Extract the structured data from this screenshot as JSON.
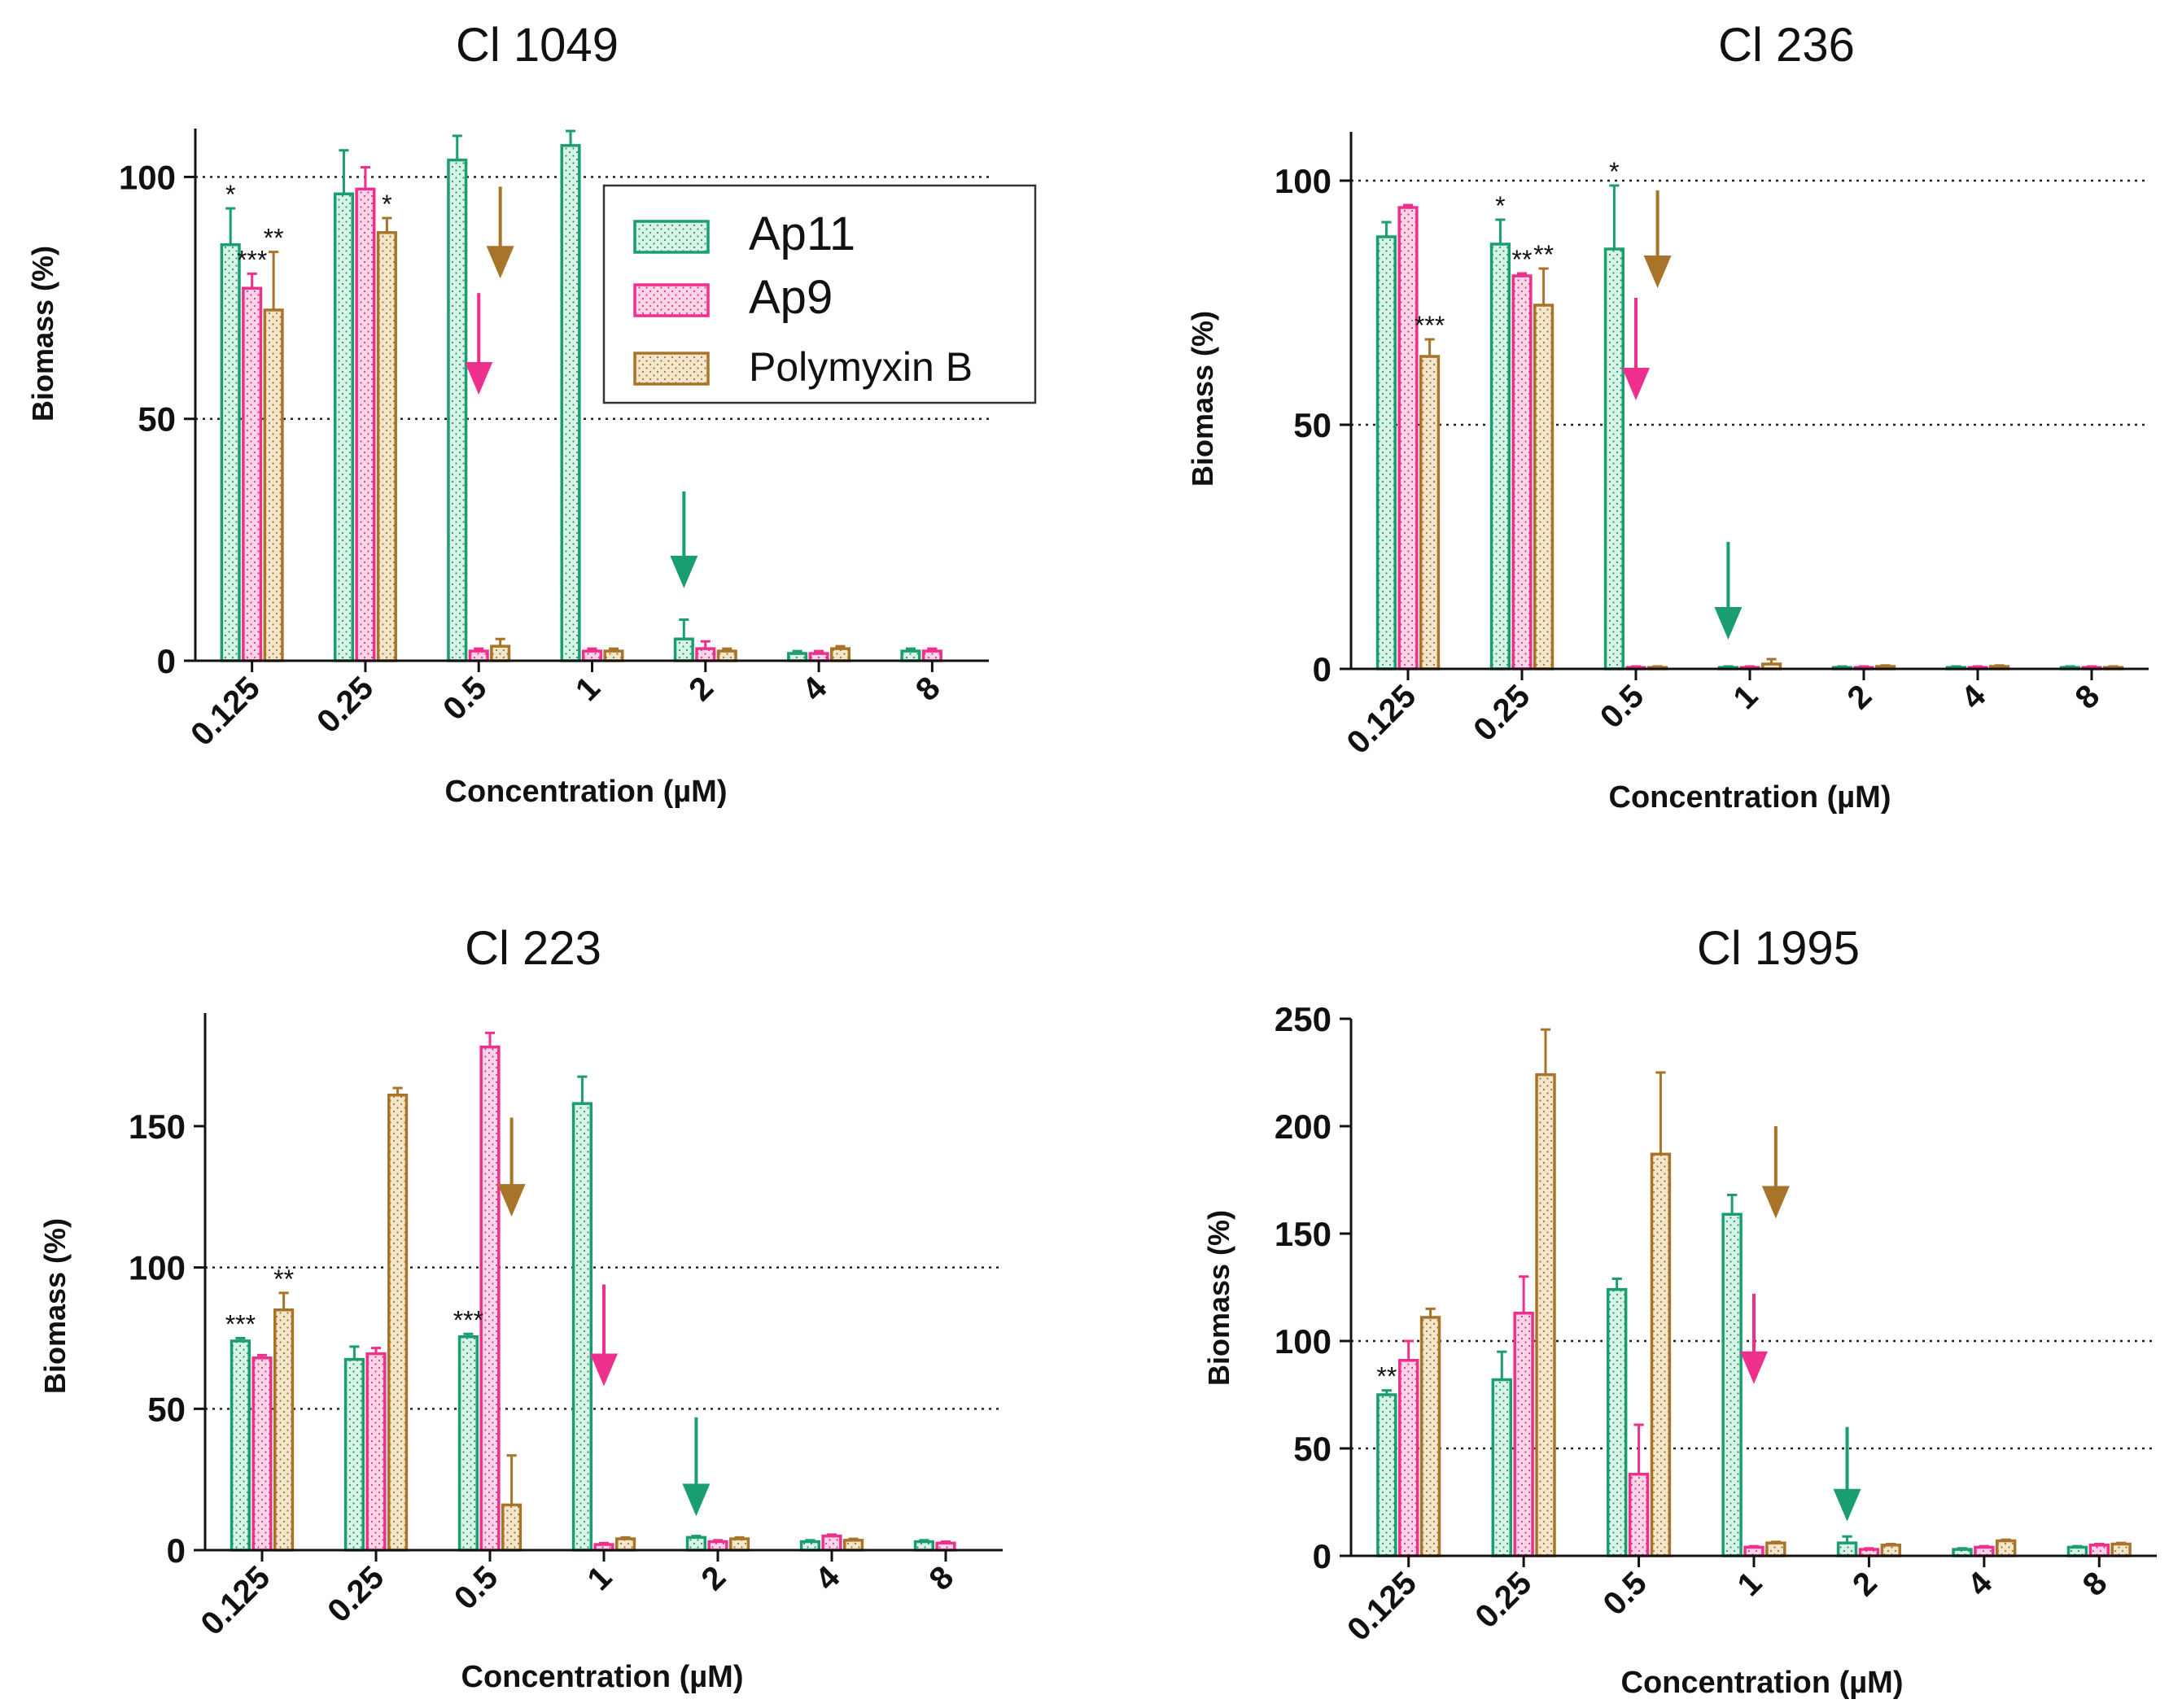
{
  "figure": {
    "colors": {
      "ap11": "#1a9e70",
      "ap9": "#ee2f8c",
      "polymyxin": "#a8742a",
      "ap11_fill": "#daf3e7",
      "ap9_fill": "#fbd6e7",
      "polymyxin_fill": "#f2e6cd",
      "axis": "#111111",
      "reference_line": "#222222"
    },
    "legend": {
      "entries": [
        "Ap11",
        "Ap9",
        "Polymyxin B"
      ]
    }
  },
  "chart_data": [
    {
      "type": "bar",
      "title": "Cl 1049",
      "xlabel": "Concentration (µM)",
      "ylabel": "Biomass (%)",
      "categories": [
        "0.125",
        "0.25",
        "0.5",
        "1",
        "2",
        "4",
        "8"
      ],
      "ylim": [
        0,
        110
      ],
      "yticks": [
        "0",
        "50",
        "100"
      ],
      "reference_lines": [
        50,
        100
      ],
      "legend_position": "top-right",
      "series": [
        {
          "name": "Ap11",
          "values": [
            86,
            96.5,
            103.5,
            106.5,
            4.5,
            1.5,
            2
          ],
          "errors": [
            7.5,
            9,
            5,
            3,
            4,
            0.5,
            0.5
          ]
        },
        {
          "name": "Ap9",
          "values": [
            77,
            97.5,
            2,
            2,
            2.5,
            1.5,
            2
          ],
          "errors": [
            3,
            4.5,
            0.5,
            0.5,
            1.5,
            0.5,
            0.5
          ]
        },
        {
          "name": "Polymyxin B",
          "values": [
            72.5,
            88.5,
            3,
            2,
            2,
            2.5,
            null
          ],
          "errors": [
            12,
            3,
            1.5,
            0.5,
            0.5,
            0.5,
            null
          ]
        }
      ],
      "significance": [
        {
          "category": "0.125",
          "series": "Ap11",
          "label": "*"
        },
        {
          "category": "0.125",
          "series": "Ap9",
          "label": "***"
        },
        {
          "category": "0.125",
          "series": "Polymyxin B",
          "label": "**"
        },
        {
          "category": "0.25",
          "series": "Polymyxin B",
          "label": "*"
        }
      ],
      "arrows": [
        {
          "series": "Polymyxin B",
          "category": "0.5",
          "top": 98,
          "bottom": 79
        },
        {
          "series": "Ap9",
          "category": "0.5",
          "top": 76,
          "bottom": 55
        },
        {
          "series": "Ap11",
          "category": "2",
          "top": 35,
          "bottom": 15
        }
      ]
    },
    {
      "type": "bar",
      "title": "Cl 236",
      "xlabel": "Concentration (µM)",
      "ylabel": "Biomass (%)",
      "categories": [
        "0.125",
        "0.25",
        "0.5",
        "1",
        "2",
        "4",
        "8"
      ],
      "ylim": [
        0,
        110
      ],
      "yticks": [
        "0",
        "50",
        "100"
      ],
      "reference_lines": [
        50,
        100
      ],
      "series": [
        {
          "name": "Ap11",
          "values": [
            88.5,
            87,
            86,
            0.3,
            0.3,
            0.3,
            0.3
          ],
          "errors": [
            3,
            5,
            13,
            0.2,
            0.2,
            0.2,
            0.2
          ]
        },
        {
          "name": "Ap9",
          "values": [
            94.5,
            80.5,
            0.3,
            0.3,
            0.3,
            0.3,
            0.3
          ],
          "errors": [
            0.5,
            0.5,
            0.2,
            0.2,
            0.2,
            0.2,
            0.2
          ]
        },
        {
          "name": "Polymyxin B",
          "values": [
            64,
            74.5,
            0.3,
            1,
            0.5,
            0.5,
            0.3
          ],
          "errors": [
            3.5,
            7.5,
            0.2,
            1,
            0.2,
            0.2,
            0.2
          ]
        }
      ],
      "significance": [
        {
          "category": "0.125",
          "series": "Polymyxin B",
          "label": "***"
        },
        {
          "category": "0.25",
          "series": "Ap11",
          "label": "*"
        },
        {
          "category": "0.25",
          "series": "Ap9",
          "label": "**"
        },
        {
          "category": "0.25",
          "series": "Polymyxin B",
          "label": "**"
        },
        {
          "category": "0.5",
          "series": "Ap11",
          "label": "*"
        }
      ],
      "arrows": [
        {
          "series": "Polymyxin B",
          "category": "0.5",
          "top": 98,
          "bottom": 78
        },
        {
          "series": "Ap9",
          "category": "0.5",
          "top": 76,
          "bottom": 55
        },
        {
          "series": "Ap11",
          "category": "1",
          "top": 26,
          "bottom": 6
        }
      ]
    },
    {
      "type": "bar",
      "title": "Cl 223",
      "xlabel": "Concentration (µM)",
      "ylabel": "Biomass (%)",
      "categories": [
        "0.125",
        "0.25",
        "0.5",
        "1",
        "2",
        "4",
        "8"
      ],
      "ylim": [
        0,
        190
      ],
      "yticks": [
        "0",
        "50",
        "100",
        "150"
      ],
      "reference_lines": [
        50,
        100
      ],
      "series": [
        {
          "name": "Ap11",
          "values": [
            74,
            67.5,
            75.5,
            158,
            4.5,
            3,
            3
          ],
          "errors": [
            1,
            4.5,
            1,
            9.5,
            0.5,
            0.5,
            0.5
          ]
        },
        {
          "name": "Ap9",
          "values": [
            68,
            69.5,
            178,
            2,
            3,
            5,
            2.5
          ],
          "errors": [
            1,
            2,
            5,
            0.5,
            0.5,
            0.5,
            0.5
          ]
        },
        {
          "name": "Polymyxin B",
          "values": [
            85,
            161,
            16,
            4,
            4,
            3.5,
            null
          ],
          "errors": [
            6,
            2.5,
            17.5,
            0.5,
            0.5,
            0.5,
            null
          ]
        }
      ],
      "significance": [
        {
          "category": "0.125",
          "series": "Ap11",
          "label": "***"
        },
        {
          "category": "0.125",
          "series": "Polymyxin B",
          "label": "**"
        },
        {
          "category": "0.5",
          "series": "Ap11",
          "label": "***"
        }
      ],
      "arrows": [
        {
          "series": "Polymyxin B",
          "category": "0.5",
          "top": 153,
          "bottom": 118
        },
        {
          "series": "Ap9",
          "category": "1",
          "top": 94,
          "bottom": 58
        },
        {
          "series": "Ap11",
          "category": "2",
          "top": 47,
          "bottom": 12
        }
      ]
    },
    {
      "type": "bar",
      "title": "Cl 1995",
      "xlabel": "Concentration (µM)",
      "ylabel": "Biomass (%)",
      "categories": [
        "0.125",
        "0.25",
        "0.5",
        "1",
        "2",
        "4",
        "8"
      ],
      "ylim": [
        0,
        250
      ],
      "yticks": [
        "0",
        "50",
        "100",
        "150",
        "200",
        "250"
      ],
      "reference_lines": [
        50,
        100
      ],
      "series": [
        {
          "name": "Ap11",
          "values": [
            75,
            82,
            124,
            159,
            6,
            3,
            4
          ],
          "errors": [
            2,
            13,
            5,
            9,
            3,
            0.5,
            0.5
          ]
        },
        {
          "name": "Ap9",
          "values": [
            91,
            113,
            38,
            4,
            3,
            4,
            5
          ],
          "errors": [
            9,
            17,
            23,
            0.5,
            0.5,
            0.5,
            0.5
          ]
        },
        {
          "name": "Polymyxin B",
          "values": [
            111,
            224,
            187,
            6,
            5,
            7,
            5.5
          ],
          "errors": [
            4,
            21,
            38,
            0.5,
            0.5,
            0.5,
            0.5
          ]
        }
      ],
      "significance": [
        {
          "category": "0.125",
          "series": "Ap11",
          "label": "**"
        }
      ],
      "arrows": [
        {
          "series": "Polymyxin B",
          "category": "1",
          "top": 200,
          "bottom": 157
        },
        {
          "series": "Ap9",
          "category": "1",
          "top": 122,
          "bottom": 80
        },
        {
          "series": "Ap11",
          "category": "2",
          "top": 60,
          "bottom": 16
        }
      ]
    }
  ]
}
